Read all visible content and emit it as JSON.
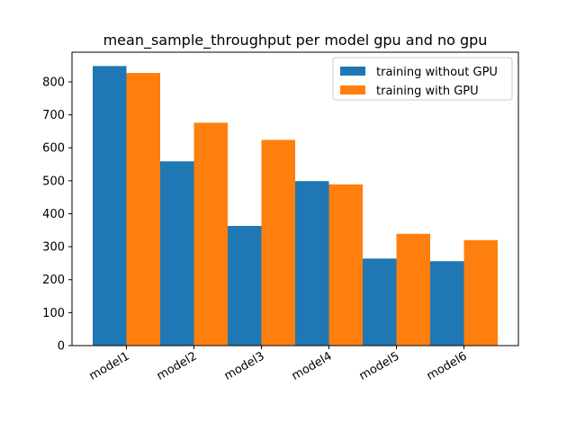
{
  "chart_data": {
    "type": "bar",
    "title": "mean_sample_throughput per model gpu and no gpu",
    "xlabel": "",
    "ylabel": "",
    "categories": [
      "model1",
      "model2",
      "model3",
      "model4",
      "model5",
      "model6"
    ],
    "series": [
      {
        "name": "training without GPU",
        "color": "#1f77b4",
        "values": [
          848,
          559,
          363,
          499,
          264,
          256
        ]
      },
      {
        "name": "training with GPU",
        "color": "#ff7f0e",
        "values": [
          827,
          676,
          624,
          489,
          339,
          320
        ]
      }
    ],
    "ylim": [
      0,
      890
    ],
    "yticks": [
      0,
      100,
      200,
      300,
      400,
      500,
      600,
      700,
      800
    ],
    "legend_position": "top-right",
    "grid": false
  }
}
